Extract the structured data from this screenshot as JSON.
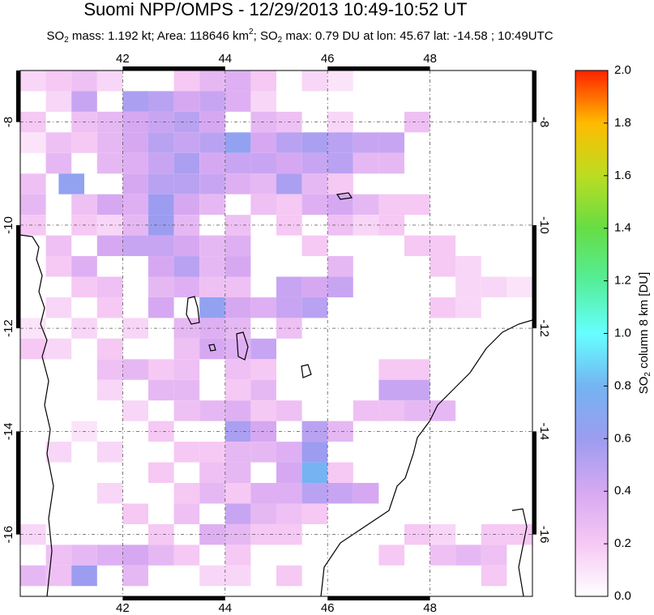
{
  "chart_data": {
    "type": "heatmap",
    "title": "Suomi NPP/OMPS - 12/29/2013 10:49-10:52 UT",
    "subtitle": [
      "SO",
      "2",
      " mass: 1.192 kt; Area: 118646 km",
      "2",
      "; SO",
      "2",
      " max: 0.79 DU at lon: 45.67 lat: -14.58 ; 10:49UTC"
    ],
    "xlim": [
      40,
      50
    ],
    "ylim": [
      -17.2,
      -7
    ],
    "xticks": [
      42,
      44,
      46,
      48
    ],
    "yticks": [
      -8,
      -10,
      -12,
      -14,
      -16
    ],
    "grid": true,
    "colorbar": {
      "label": [
        "SO",
        "2",
        " column 8 km [DU]"
      ],
      "lim": [
        0,
        2
      ],
      "ticks": [
        {
          "value": 0,
          "label": "0.0"
        },
        0.2,
        0.4,
        0.6,
        0.8,
        {
          "value": 1,
          "label": "1.0"
        },
        1.2,
        1.4,
        1.6,
        1.8,
        {
          "value": 2,
          "label": "2.0"
        }
      ],
      "colormap": [
        "#ffffff",
        "#f6c8f4",
        "#d6a8f2",
        "#9c9cf0",
        "#74b4f2",
        "#66ffff",
        "#55ee99",
        "#66dd44",
        "#bbdd22",
        "#ffbb00",
        "#ff2200"
      ]
    },
    "cells": [
      [
        40,
        -7,
        0.15
      ],
      [
        40.5,
        -7,
        0.2
      ],
      [
        41,
        -7,
        0.25
      ],
      [
        41.5,
        -7,
        0.15
      ],
      [
        43,
        -7,
        0.2
      ],
      [
        43.5,
        -7,
        0.3
      ],
      [
        44,
        -7,
        0.35
      ],
      [
        44.5,
        -7,
        0.2
      ],
      [
        45.5,
        -7,
        0.15
      ],
      [
        46,
        -7,
        0.1
      ],
      [
        40.5,
        -7.4,
        0.15
      ],
      [
        41,
        -7.4,
        0.45
      ],
      [
        42,
        -7.4,
        0.55
      ],
      [
        42.5,
        -7.4,
        0.5
      ],
      [
        43,
        -7.4,
        0.4
      ],
      [
        43.5,
        -7.4,
        0.45
      ],
      [
        44,
        -7.4,
        0.35
      ],
      [
        44.5,
        -7.4,
        0.15
      ],
      [
        40,
        -7.8,
        0.2
      ],
      [
        41,
        -7.8,
        0.25
      ],
      [
        41.5,
        -7.8,
        0.3
      ],
      [
        42,
        -7.8,
        0.4
      ],
      [
        42.5,
        -7.8,
        0.45
      ],
      [
        43,
        -7.8,
        0.5
      ],
      [
        43.5,
        -7.8,
        0.4
      ],
      [
        44.5,
        -7.8,
        0.3
      ],
      [
        45,
        -7.8,
        0.25
      ],
      [
        46,
        -7.8,
        0.15
      ],
      [
        47.5,
        -7.8,
        0.25
      ],
      [
        40,
        -8.2,
        0.1
      ],
      [
        40.5,
        -8.2,
        0.25
      ],
      [
        41,
        -8.2,
        0.2
      ],
      [
        41.5,
        -8.2,
        0.3
      ],
      [
        42,
        -8.2,
        0.4
      ],
      [
        42.5,
        -8.2,
        0.5
      ],
      [
        43,
        -8.2,
        0.45
      ],
      [
        43.5,
        -8.2,
        0.5
      ],
      [
        44,
        -8.2,
        0.65
      ],
      [
        44.5,
        -8.2,
        0.4
      ],
      [
        45,
        -8.2,
        0.5
      ],
      [
        45.5,
        -8.2,
        0.55
      ],
      [
        46,
        -8.2,
        0.5
      ],
      [
        46.5,
        -8.2,
        0.45
      ],
      [
        47,
        -8.2,
        0.45
      ],
      [
        40.5,
        -8.6,
        0.3
      ],
      [
        41.5,
        -8.6,
        0.3
      ],
      [
        42,
        -8.6,
        0.35
      ],
      [
        42.5,
        -8.6,
        0.45
      ],
      [
        43,
        -8.6,
        0.55
      ],
      [
        43.5,
        -8.6,
        0.4
      ],
      [
        44,
        -8.6,
        0.45
      ],
      [
        44.5,
        -8.6,
        0.45
      ],
      [
        45,
        -8.6,
        0.4
      ],
      [
        45.5,
        -8.6,
        0.45
      ],
      [
        46,
        -8.6,
        0.5
      ],
      [
        46.5,
        -8.6,
        0.3
      ],
      [
        47,
        -8.6,
        0.3
      ],
      [
        40,
        -9,
        0.25
      ],
      [
        40.75,
        -9,
        0.65
      ],
      [
        42,
        -9,
        0.4
      ],
      [
        42.5,
        -9,
        0.5
      ],
      [
        43,
        -9,
        0.5
      ],
      [
        43.5,
        -9,
        0.45
      ],
      [
        44,
        -9,
        0.35
      ],
      [
        44.5,
        -9,
        0.3
      ],
      [
        45,
        -9,
        0.55
      ],
      [
        45.5,
        -9,
        0.3
      ],
      [
        46,
        -9,
        0.2
      ],
      [
        40,
        -9.4,
        0.3
      ],
      [
        41,
        -9.4,
        0.25
      ],
      [
        41.5,
        -9.4,
        0.4
      ],
      [
        42,
        -9.4,
        0.35
      ],
      [
        42.5,
        -9.4,
        0.6
      ],
      [
        43,
        -9.4,
        0.4
      ],
      [
        43.5,
        -9.4,
        0.3
      ],
      [
        44.5,
        -9.4,
        0.25
      ],
      [
        45,
        -9.4,
        0.2
      ],
      [
        45.5,
        -9.4,
        0.35
      ],
      [
        46,
        -9.4,
        0.4
      ],
      [
        46.5,
        -9.4,
        0.3
      ],
      [
        47,
        -9.4,
        0.2
      ],
      [
        47.5,
        -9.4,
        0.2
      ],
      [
        40,
        -9.8,
        0.2
      ],
      [
        41,
        -9.8,
        0.2
      ],
      [
        41.5,
        -9.8,
        0.15
      ],
      [
        42,
        -9.8,
        0.3
      ],
      [
        42.5,
        -9.8,
        0.6
      ],
      [
        43,
        -9.8,
        0.3
      ],
      [
        44,
        -9.8,
        0.25
      ],
      [
        45,
        -9.8,
        0.2
      ],
      [
        46,
        -9.8,
        0.25
      ],
      [
        46.5,
        -9.8,
        0.15
      ],
      [
        47,
        -9.8,
        0.2
      ],
      [
        40.5,
        -10.2,
        0.25
      ],
      [
        41.5,
        -10.2,
        0.4
      ],
      [
        42,
        -10.2,
        0.45
      ],
      [
        42.5,
        -10.2,
        0.45
      ],
      [
        43,
        -10.2,
        0.4
      ],
      [
        43.5,
        -10.2,
        0.3
      ],
      [
        44,
        -10.2,
        0.35
      ],
      [
        45.5,
        -10.2,
        0.2
      ],
      [
        47.5,
        -10.2,
        0.2
      ],
      [
        48,
        -10.2,
        0.2
      ],
      [
        40.5,
        -10.6,
        0.2
      ],
      [
        41,
        -10.6,
        0.35
      ],
      [
        42.5,
        -10.6,
        0.4
      ],
      [
        43,
        -10.6,
        0.5
      ],
      [
        43.5,
        -10.6,
        0.3
      ],
      [
        44,
        -10.6,
        0.4
      ],
      [
        46,
        -10.6,
        0.3
      ],
      [
        48,
        -10.6,
        0.2
      ],
      [
        48.5,
        -10.6,
        0.15
      ],
      [
        41,
        -11,
        0.2
      ],
      [
        41.5,
        -11,
        0.25
      ],
      [
        42.5,
        -11,
        0.3
      ],
      [
        43,
        -11,
        0.35
      ],
      [
        43.5,
        -11,
        0.25
      ],
      [
        44,
        -11,
        0.25
      ],
      [
        45,
        -11,
        0.45
      ],
      [
        45.5,
        -11,
        0.4
      ],
      [
        46,
        -11,
        0.45
      ],
      [
        48.5,
        -11,
        0.15
      ],
      [
        49,
        -11,
        0.15
      ],
      [
        49.5,
        -11,
        0.1
      ],
      [
        40.5,
        -11.4,
        0.15
      ],
      [
        41.5,
        -11.4,
        0.2
      ],
      [
        42.5,
        -11.4,
        0.4
      ],
      [
        43.5,
        -11.4,
        0.65
      ],
      [
        44,
        -11.4,
        0.4
      ],
      [
        44.5,
        -11.4,
        0.35
      ],
      [
        45,
        -11.4,
        0.45
      ],
      [
        45.5,
        -11.4,
        0.5
      ],
      [
        48,
        -11.4,
        0.2
      ],
      [
        48.5,
        -11.4,
        0.15
      ],
      [
        40,
        -11.8,
        0.1
      ],
      [
        41,
        -11.8,
        0.15
      ],
      [
        42,
        -11.8,
        0.15
      ],
      [
        43,
        -11.8,
        0.3
      ],
      [
        43.5,
        -11.8,
        0.35
      ],
      [
        44,
        -11.8,
        0.3
      ],
      [
        45,
        -11.8,
        0.25
      ],
      [
        40,
        -12.2,
        0.2
      ],
      [
        40.5,
        -12.2,
        0.15
      ],
      [
        41.5,
        -12.2,
        0.2
      ],
      [
        43,
        -12.2,
        0.25
      ],
      [
        43.5,
        -12.2,
        0.4
      ],
      [
        44,
        -12.2,
        0.35
      ],
      [
        44.5,
        -12.2,
        0.45
      ],
      [
        41.5,
        -12.6,
        0.25
      ],
      [
        42,
        -12.6,
        0.3
      ],
      [
        42.5,
        -12.6,
        0.2
      ],
      [
        43,
        -12.6,
        0.25
      ],
      [
        44,
        -12.6,
        0.25
      ],
      [
        44.5,
        -12.6,
        0.2
      ],
      [
        47,
        -12.6,
        0.2
      ],
      [
        47.5,
        -12.6,
        0.2
      ],
      [
        41.5,
        -13,
        0.15
      ],
      [
        42.5,
        -13,
        0.3
      ],
      [
        43,
        -13,
        0.3
      ],
      [
        44,
        -13,
        0.2
      ],
      [
        44.5,
        -13,
        0.3
      ],
      [
        47,
        -13,
        0.45
      ],
      [
        47.5,
        -13,
        0.45
      ],
      [
        42,
        -13.4,
        0.15
      ],
      [
        43,
        -13.4,
        0.25
      ],
      [
        43.5,
        -13.4,
        0.3
      ],
      [
        44,
        -13.4,
        0.35
      ],
      [
        44.5,
        -13.4,
        0.2
      ],
      [
        45,
        -13.4,
        0.25
      ],
      [
        46.5,
        -13.4,
        0.25
      ],
      [
        47,
        -13.4,
        0.25
      ],
      [
        47.5,
        -13.4,
        0.3
      ],
      [
        48,
        -13.4,
        0.3
      ],
      [
        41,
        -13.8,
        0.1
      ],
      [
        42.5,
        -13.8,
        0.2
      ],
      [
        44,
        -13.8,
        0.55
      ],
      [
        44.5,
        -13.8,
        0.4
      ],
      [
        45.5,
        -13.8,
        0.5
      ],
      [
        46,
        -13.8,
        0.3
      ],
      [
        40.5,
        -14.2,
        0.15
      ],
      [
        41.5,
        -14.2,
        0.15
      ],
      [
        43,
        -14.2,
        0.2
      ],
      [
        43.5,
        -14.2,
        0.2
      ],
      [
        44,
        -14.2,
        0.3
      ],
      [
        44.5,
        -14.2,
        0.3
      ],
      [
        45,
        -14.2,
        0.35
      ],
      [
        45.5,
        -14.2,
        0.6
      ],
      [
        42.5,
        -14.6,
        0.2
      ],
      [
        43.5,
        -14.6,
        0.25
      ],
      [
        44,
        -14.6,
        0.3
      ],
      [
        45,
        -14.6,
        0.4
      ],
      [
        45.5,
        -14.6,
        0.79
      ],
      [
        46,
        -14.6,
        0.2
      ],
      [
        41.5,
        -15,
        0.15
      ],
      [
        43,
        -15,
        0.2
      ],
      [
        43.5,
        -15,
        0.3
      ],
      [
        44,
        -15,
        0.2
      ],
      [
        44.5,
        -15,
        0.35
      ],
      [
        45,
        -15,
        0.35
      ],
      [
        45.5,
        -15,
        0.5
      ],
      [
        46,
        -15,
        0.45
      ],
      [
        46.5,
        -15,
        0.4
      ],
      [
        42,
        -15.4,
        0.2
      ],
      [
        43,
        -15.4,
        0.25
      ],
      [
        44,
        -15.4,
        0.45
      ],
      [
        44.5,
        -15.4,
        0.3
      ],
      [
        45,
        -15.4,
        0.25
      ],
      [
        45.5,
        -15.4,
        0.2
      ],
      [
        40,
        -15.8,
        0.15
      ],
      [
        42.5,
        -15.8,
        0.2
      ],
      [
        43.5,
        -15.8,
        0.35
      ],
      [
        44,
        -15.8,
        0.3
      ],
      [
        44.5,
        -15.8,
        0.2
      ],
      [
        45,
        -15.8,
        0.2
      ],
      [
        47.5,
        -15.8,
        0.2
      ],
      [
        48,
        -15.8,
        0.15
      ],
      [
        49,
        -15.8,
        0.2
      ],
      [
        49.5,
        -15.8,
        0.2
      ],
      [
        40.5,
        -16.2,
        0.25
      ],
      [
        41,
        -16.2,
        0.3
      ],
      [
        41.5,
        -16.2,
        0.35
      ],
      [
        42,
        -16.2,
        0.4
      ],
      [
        42.5,
        -16.2,
        0.3
      ],
      [
        43,
        -16.2,
        0.2
      ],
      [
        44,
        -16.2,
        0.2
      ],
      [
        47,
        -16.2,
        0.2
      ],
      [
        48,
        -16.2,
        0.25
      ],
      [
        48.5,
        -16.2,
        0.3
      ],
      [
        49,
        -16.2,
        0.25
      ],
      [
        40,
        -16.6,
        0.3
      ],
      [
        40.5,
        -16.6,
        0.25
      ],
      [
        41,
        -16.6,
        0.6
      ],
      [
        42,
        -16.6,
        0.3
      ],
      [
        43.5,
        -16.6,
        0.15
      ],
      [
        44,
        -16.6,
        0.15
      ],
      [
        45,
        -16.6,
        0.2
      ],
      [
        49,
        -16.6,
        0.2
      ]
    ]
  }
}
